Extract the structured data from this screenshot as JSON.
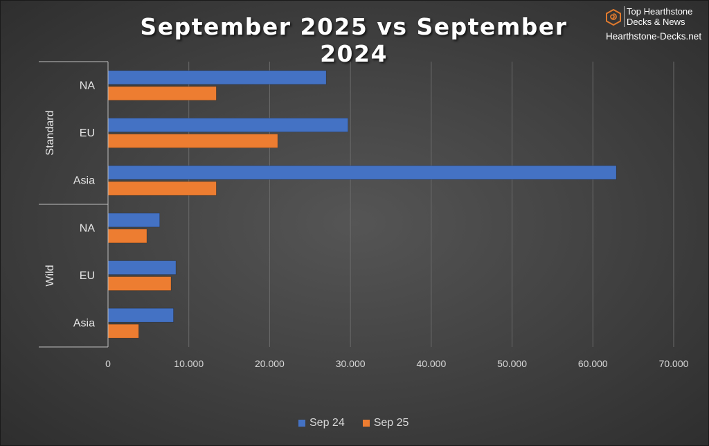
{
  "chart_data": {
    "type": "bar",
    "orientation": "horizontal",
    "title": "September 2025 vs September 2024",
    "groups": [
      {
        "name": "Standard",
        "categories": [
          "NA",
          "EU",
          "Asia"
        ]
      },
      {
        "name": "Wild",
        "categories": [
          "NA",
          "EU",
          "Asia"
        ]
      }
    ],
    "series": [
      {
        "name": "Sep 24",
        "color": "#4472C4",
        "values": [
          27000,
          29700,
          62900,
          6400,
          8400,
          8100
        ]
      },
      {
        "name": "Sep 25",
        "color": "#ED7D31",
        "values": [
          13400,
          21000,
          13400,
          4800,
          7800,
          3800
        ]
      }
    ],
    "xlim": [
      0,
      70000
    ],
    "x_ticks": [
      0,
      10000,
      20000,
      30000,
      40000,
      50000,
      60000,
      70000
    ],
    "x_tick_labels": [
      "0",
      "10.000",
      "20.000",
      "30.000",
      "40.000",
      "50.000",
      "60.000",
      "70.000"
    ],
    "grid": "vertical",
    "legend_position": "bottom"
  },
  "branding": {
    "line1": "Top Hearthstone",
    "line2": "Decks & News",
    "site": "Hearthstone-Decks.net",
    "icon": "hexagon-swirl-logo-icon",
    "accent": "#E07A2E"
  }
}
